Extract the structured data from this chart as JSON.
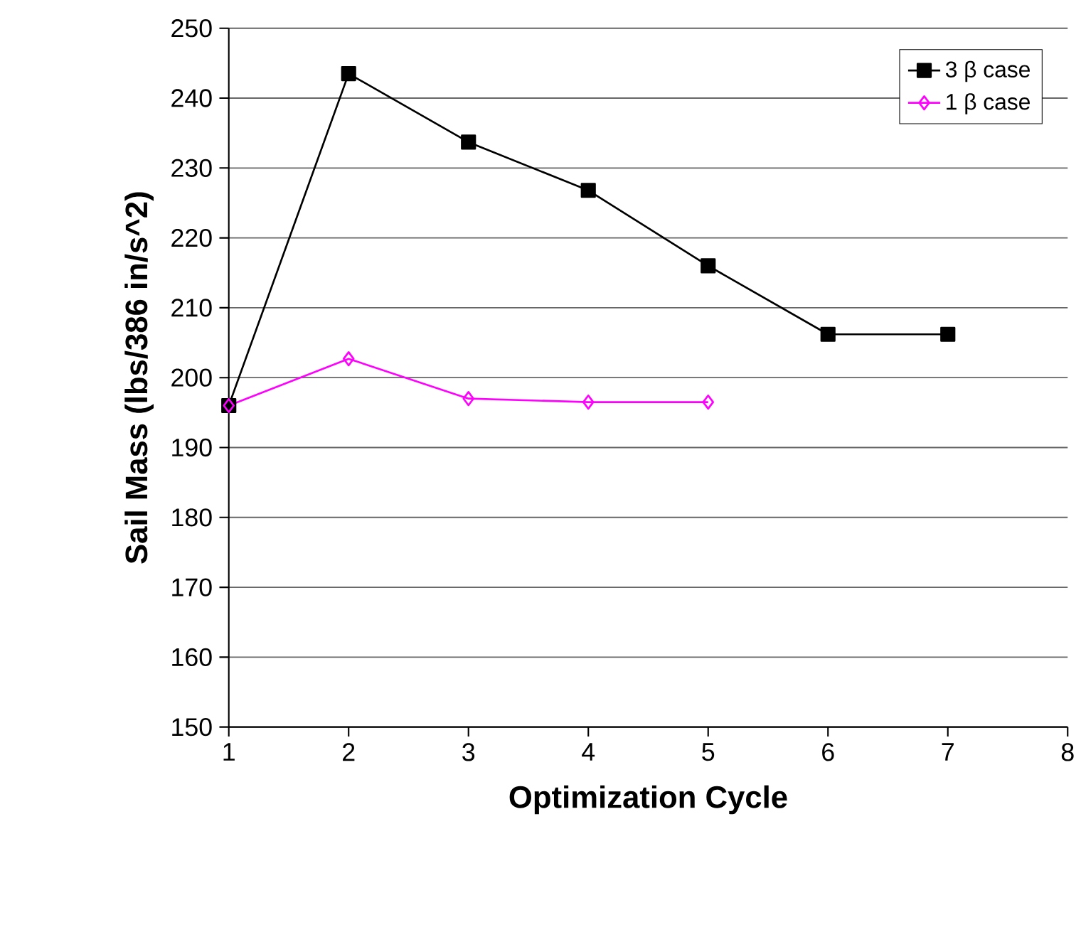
{
  "chart_data": {
    "type": "line",
    "xlabel": "Optimization Cycle",
    "ylabel": "Sail Mass (lbs/386 in/s^2)",
    "xlim": [
      1,
      8
    ],
    "xticks": [
      1,
      2,
      3,
      4,
      5,
      6,
      7,
      8
    ],
    "ylim": [
      150,
      250
    ],
    "yticks": [
      150,
      160,
      170,
      180,
      190,
      200,
      210,
      220,
      230,
      240,
      250
    ],
    "grid": "y",
    "legend": "top right",
    "line_style": "solid",
    "series": [
      {
        "name": "3 β case",
        "color": "#000000",
        "marker": "square",
        "x": [
          1,
          2,
          3,
          4,
          5,
          6,
          7
        ],
        "values": [
          196,
          243.5,
          233.7,
          226.8,
          216,
          206.2,
          206.2
        ]
      },
      {
        "name": "1 β case",
        "color": "#ff00ff",
        "marker": "diamond",
        "x": [
          1,
          2,
          3,
          4,
          5
        ],
        "values": [
          196,
          202.7,
          197,
          196.5,
          196.5
        ]
      }
    ]
  }
}
